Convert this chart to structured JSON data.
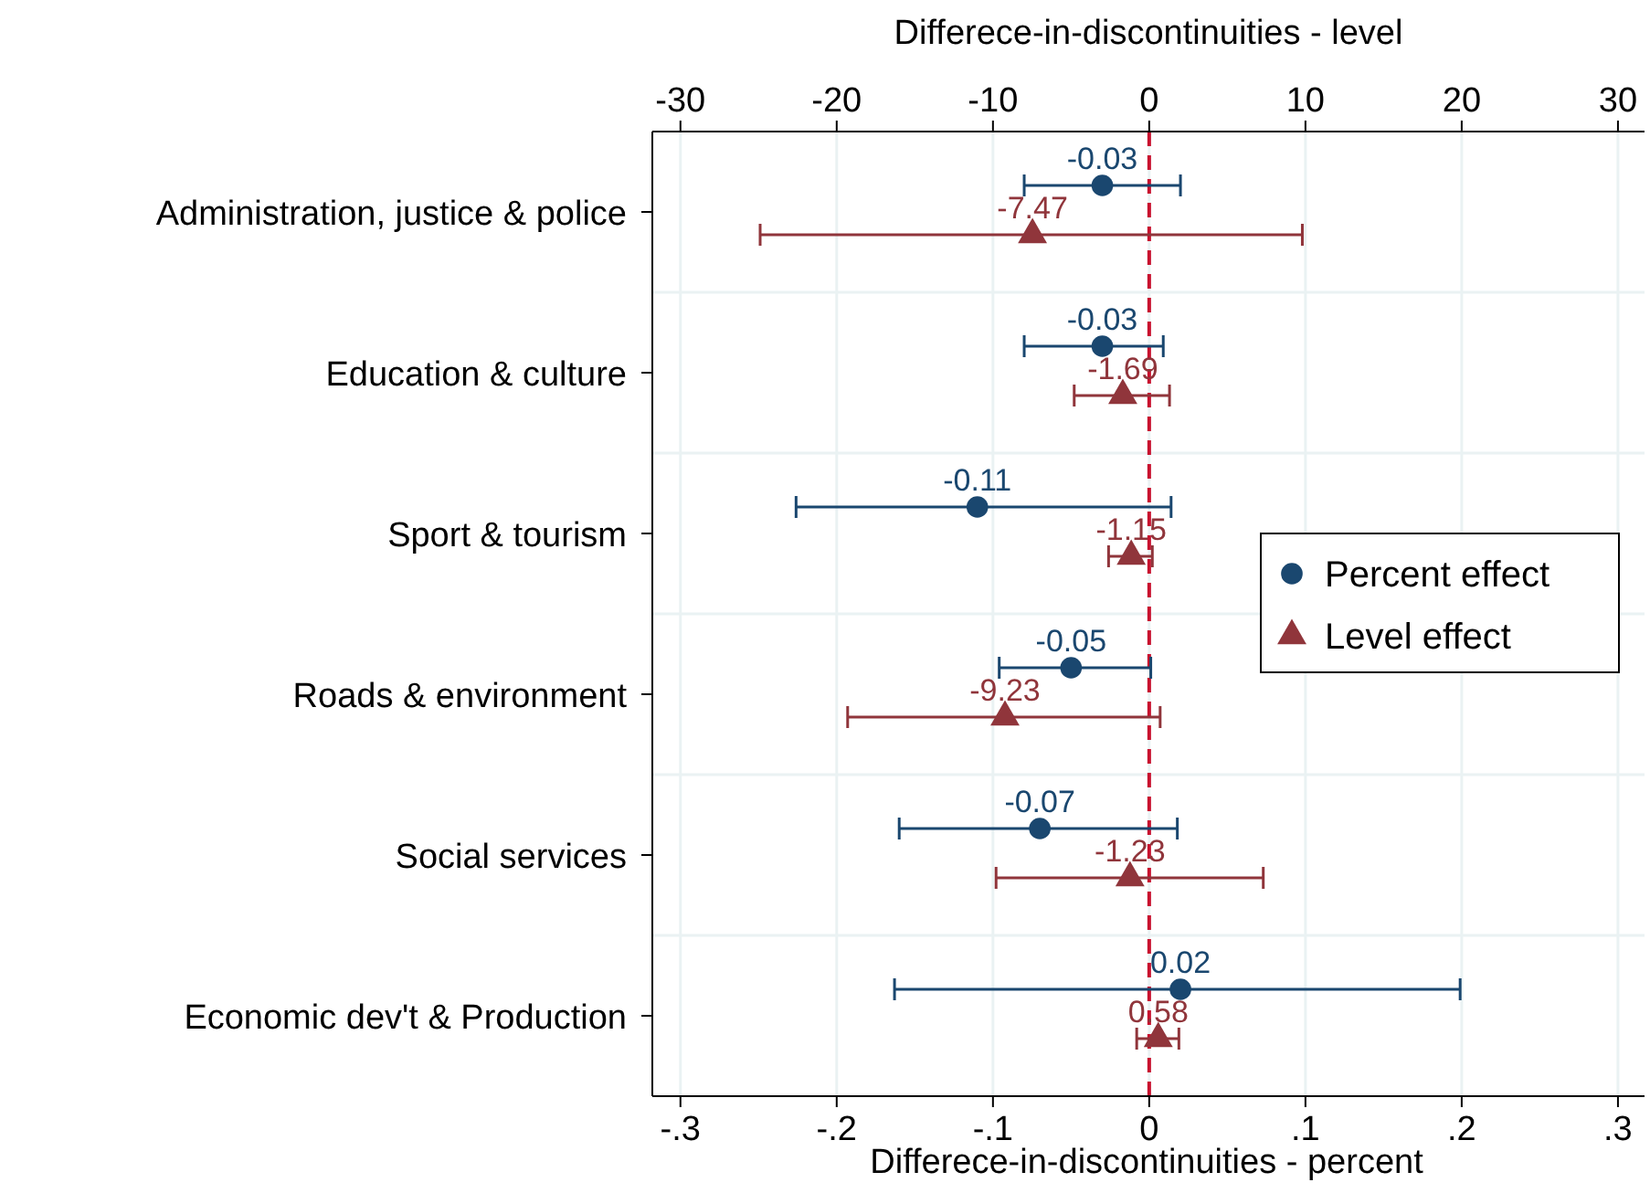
{
  "chart_data": {
    "type": "scatter",
    "orientation": "horizontal",
    "xlabel": "Differece-in-discontinuities - percent",
    "x2label": "Differece-in-discontinuities - level",
    "categories": [
      "Administration, justice & police",
      "Education & culture",
      "Sport & tourism",
      "Roads & environment",
      "Social services",
      "Economic dev't & Production"
    ],
    "xlim": [
      -0.318,
      0.317
    ],
    "xticks": [
      {
        "value": -0.3,
        "label": "-.3"
      },
      {
        "value": -0.2,
        "label": "-.2"
      },
      {
        "value": -0.1,
        "label": "-.1"
      },
      0,
      {
        "value": 0.1,
        "label": ".1"
      },
      {
        "value": 0.2,
        "label": ".2"
      },
      {
        "value": 0.3,
        "label": ".3"
      }
    ],
    "x2lim": [
      -31.8,
      31.7
    ],
    "x2ticks": [
      -30,
      -20,
      -10,
      0,
      10,
      20,
      30
    ],
    "series": [
      {
        "name": "Percent effect",
        "color": "#1a476f",
        "marker": "circle",
        "values": [
          -0.03,
          -0.03,
          -0.11,
          -0.05,
          -0.07,
          0.02
        ],
        "errors": [
          [
            -0.08,
            0.02
          ],
          [
            -0.08,
            0.009
          ],
          [
            -0.226,
            0.014
          ],
          [
            -0.096,
            0.001
          ],
          [
            -0.16,
            0.018
          ],
          [
            -0.163,
            0.199
          ]
        ]
      },
      {
        "name": "Level effect",
        "color": "#90353b",
        "marker": "triangle",
        "axis": "x2",
        "values": [
          -7.47,
          -1.69,
          -1.15,
          -9.23,
          -1.23,
          0.58
        ],
        "errors": [
          [
            -24.9,
            9.8
          ],
          [
            -4.8,
            1.3
          ],
          [
            -2.6,
            0.2
          ],
          [
            -19.3,
            0.7
          ],
          [
            -9.8,
            7.3
          ],
          [
            -0.8,
            1.9
          ]
        ]
      }
    ],
    "data_labels": true,
    "grid": true,
    "legend": "right",
    "ref_lines": [
      {
        "axis": "x",
        "value": 0,
        "color": "#c8102e",
        "line_style": "dashed"
      }
    ]
  }
}
